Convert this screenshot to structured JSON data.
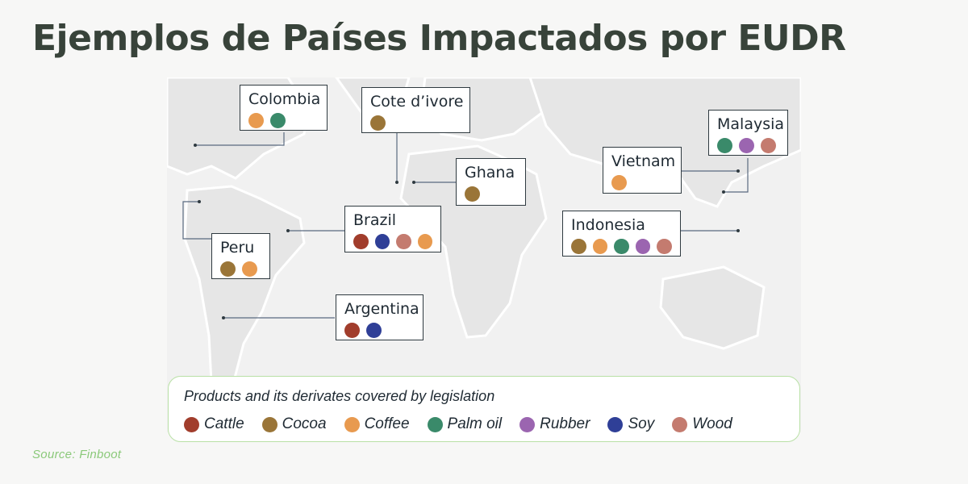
{
  "title": "Ejemplos de Países Impactados por EUDR",
  "source": "Source: Finboot",
  "products": [
    {
      "name": "Cattle",
      "color": "#a13d2c"
    },
    {
      "name": "Cocoa",
      "color": "#9a7538"
    },
    {
      "name": "Coffee",
      "color": "#e89a4f"
    },
    {
      "name": "Palm oil",
      "color": "#3a8a6a"
    },
    {
      "name": "Rubber",
      "color": "#9b65b0"
    },
    {
      "name": "Soy",
      "color": "#2f3f97"
    },
    {
      "name": "Wood",
      "color": "#c47b6f"
    }
  ],
  "legend": {
    "title": "Products and its derivates covered by legislation"
  },
  "countries": [
    {
      "name": "Colombia",
      "products": [
        "Coffee",
        "Palm oil"
      ]
    },
    {
      "name": "Cote d’ivore",
      "products": [
        "Cocoa"
      ]
    },
    {
      "name": "Ghana",
      "products": [
        "Cocoa"
      ]
    },
    {
      "name": "Malaysia",
      "products": [
        "Palm oil",
        "Rubber",
        "Wood"
      ]
    },
    {
      "name": "Vietnam",
      "products": [
        "Coffee"
      ]
    },
    {
      "name": "Brazil",
      "products": [
        "Cattle",
        "Soy",
        "Wood",
        "Coffee"
      ]
    },
    {
      "name": "Peru",
      "products": [
        "Cocoa",
        "Coffee"
      ]
    },
    {
      "name": "Indonesia",
      "products": [
        "Cocoa",
        "Coffee",
        "Palm oil",
        "Rubber",
        "Wood"
      ]
    },
    {
      "name": "Argentina",
      "products": [
        "Cattle",
        "Soy"
      ]
    }
  ]
}
